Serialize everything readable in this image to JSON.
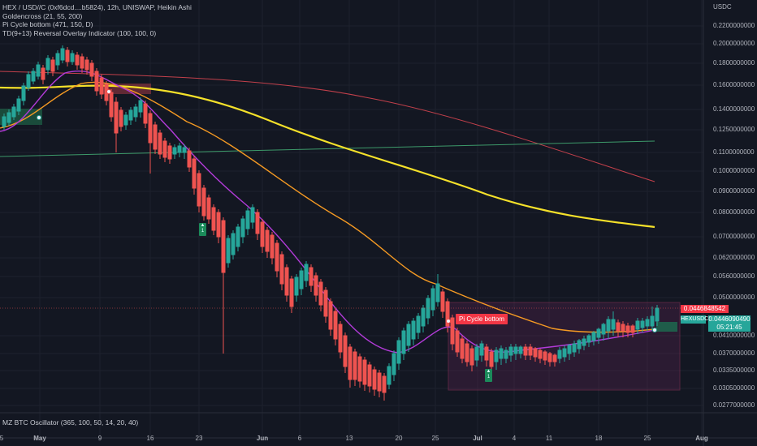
{
  "header": {
    "symbol_line": "HEX / USD//C (0xf6dcd....b5824), 12h, UNISWAP, Heikin Ashi",
    "indicators": [
      "Goldencross (21, 55, 200)",
      "Pi Cycle bottom (471, 150, D)",
      "TD(9+13) Reversal Overlay Indicator (100, 100, 0)"
    ],
    "oscillator": "MZ BTC Oscillator (365, 100, 50, 14, 20, 40)"
  },
  "axis": {
    "unit": "USDC",
    "y_ticks": [
      "0.2200000000",
      "0.2000000000",
      "0.1800000000",
      "0.1600000000",
      "0.1400000000",
      "0.1250000000",
      "0.1100000000",
      "0.1000000000",
      "0.0900000000",
      "0.0800000000",
      "0.0700000000",
      "0.0620000000",
      "0.0560000000",
      "0.0500000000",
      "0.0410000000",
      "0.0370000000",
      "0.0335000000",
      "0.0305000000",
      "0.0277000000"
    ],
    "x_ticks": [
      "5",
      "May",
      "9",
      "16",
      "23",
      "Jun",
      "6",
      "13",
      "20",
      "25",
      "Jul",
      "4",
      "11",
      "18",
      "25",
      "Aug"
    ]
  },
  "price_labels": {
    "last": "0.0446848542",
    "symbol_tag": "HEXUSDC",
    "symbol_value": "0.0446090490",
    "countdown": "05:21:45"
  },
  "annotations": {
    "pi_cycle": "Pi Cycle bottom",
    "td_left": "1",
    "td_right": "1"
  },
  "colors": {
    "background": "#131722",
    "up": "#26a69a",
    "down": "#ef5350",
    "ma_yellow": "#f5e12a",
    "ma_orange": "#f59a23",
    "ma_purple": "#b23bd8",
    "ma_red": "#c2404b",
    "ma_green": "#3d9a6a",
    "box": "#d23c78"
  }
}
